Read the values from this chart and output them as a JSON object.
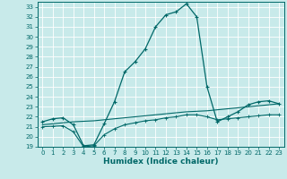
{
  "title": "",
  "xlabel": "Humidex (Indice chaleur)",
  "background_color": "#c8eaea",
  "line_color": "#006868",
  "xlim": [
    -0.5,
    23.5
  ],
  "ylim": [
    19,
    33.5
  ],
  "yticks": [
    19,
    20,
    21,
    22,
    23,
    24,
    25,
    26,
    27,
    28,
    29,
    30,
    31,
    32,
    33
  ],
  "xticks": [
    0,
    1,
    2,
    3,
    4,
    5,
    6,
    7,
    8,
    9,
    10,
    11,
    12,
    13,
    14,
    15,
    16,
    17,
    18,
    19,
    20,
    21,
    22,
    23
  ],
  "line1_x": [
    0,
    1,
    2,
    3,
    4,
    5,
    6,
    7,
    8,
    9,
    10,
    11,
    12,
    13,
    14,
    15,
    16,
    17,
    18,
    19,
    20,
    21,
    22,
    23
  ],
  "line1_y": [
    21.5,
    21.8,
    21.9,
    21.2,
    19.1,
    19.2,
    21.3,
    23.5,
    26.5,
    27.5,
    28.8,
    31.0,
    32.2,
    32.5,
    33.3,
    32.0,
    25.0,
    21.5,
    22.0,
    22.5,
    23.2,
    23.5,
    23.6,
    23.3
  ],
  "line2_x": [
    0,
    1,
    2,
    3,
    4,
    5,
    6,
    7,
    8,
    9,
    10,
    11,
    12,
    13,
    14,
    15,
    16,
    17,
    18,
    19,
    20,
    21,
    22,
    23
  ],
  "line2_y": [
    21.2,
    21.3,
    21.4,
    21.5,
    21.55,
    21.6,
    21.7,
    21.8,
    21.9,
    22.0,
    22.1,
    22.2,
    22.3,
    22.4,
    22.5,
    22.55,
    22.6,
    22.7,
    22.8,
    22.9,
    23.0,
    23.1,
    23.2,
    23.3
  ],
  "line3_x": [
    0,
    1,
    2,
    3,
    4,
    5,
    6,
    7,
    8,
    9,
    10,
    11,
    12,
    13,
    14,
    15,
    16,
    17,
    18,
    19,
    20,
    21,
    22,
    23
  ],
  "line3_y": [
    21.0,
    21.05,
    21.1,
    20.5,
    19.0,
    19.1,
    20.2,
    20.8,
    21.2,
    21.4,
    21.6,
    21.7,
    21.9,
    22.0,
    22.2,
    22.2,
    22.0,
    21.7,
    21.8,
    21.9,
    22.0,
    22.1,
    22.2,
    22.2
  ]
}
